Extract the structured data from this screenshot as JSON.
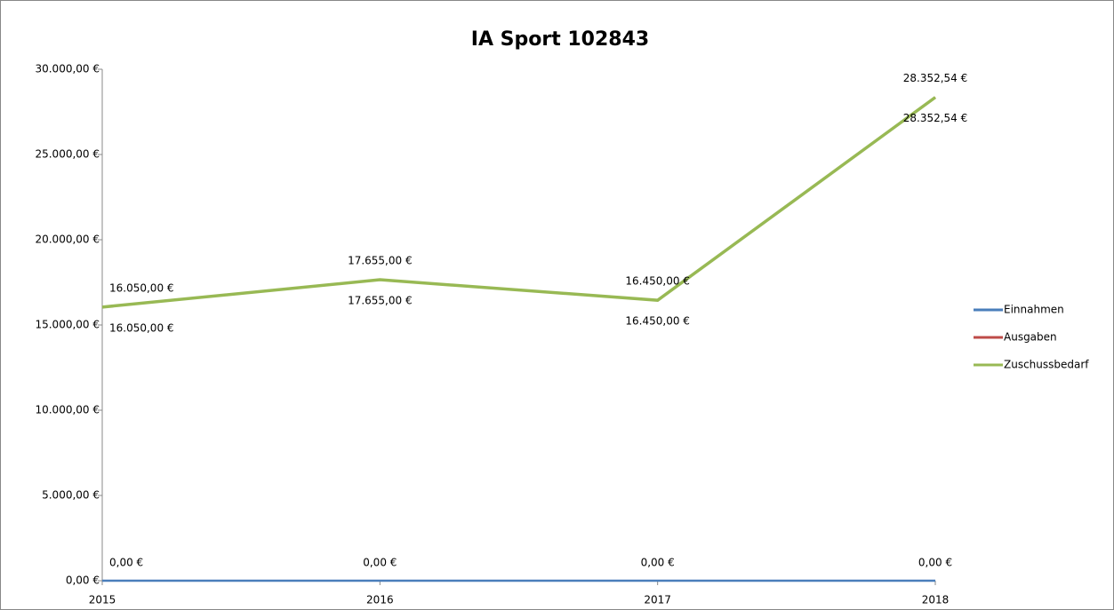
{
  "chart_data": {
    "type": "line",
    "title": "IA Sport 102843",
    "categories": [
      "2015",
      "2016",
      "2017",
      "2018"
    ],
    "series": [
      {
        "name": "Einnahmen",
        "color": "#4a7ebb",
        "values": [
          0,
          0,
          0,
          0
        ],
        "value_labels": [
          "0,00 €",
          "0,00 €",
          "0,00 €",
          "0,00 €"
        ]
      },
      {
        "name": "Ausgaben",
        "color": "#be4b48",
        "values": [
          16050,
          17655,
          16450,
          28352.54
        ],
        "value_labels": [
          "16.050,00 €",
          "17.655,00 €",
          "16.450,00 €",
          "28.352,54 €"
        ]
      },
      {
        "name": "Zuschussbedarf",
        "color": "#98b954",
        "values": [
          16050,
          17655,
          16450,
          28352.54
        ],
        "value_labels": [
          "16.050,00 €",
          "17.655,00 €",
          "16.450,00 €",
          "28.352,54 €"
        ]
      }
    ],
    "ylim": [
      0,
      30000
    ],
    "yticks": [
      {
        "value": 0,
        "label": "0,00 €"
      },
      {
        "value": 5000,
        "label": "5.000,00 €"
      },
      {
        "value": 10000,
        "label": "10.000,00 €"
      },
      {
        "value": 15000,
        "label": "15.000,00 €"
      },
      {
        "value": 20000,
        "label": "20.000,00 €"
      },
      {
        "value": 25000,
        "label": "25.000,00 €"
      },
      {
        "value": 30000,
        "label": "30.000,00 €"
      }
    ],
    "grid": false,
    "legend": "right"
  }
}
